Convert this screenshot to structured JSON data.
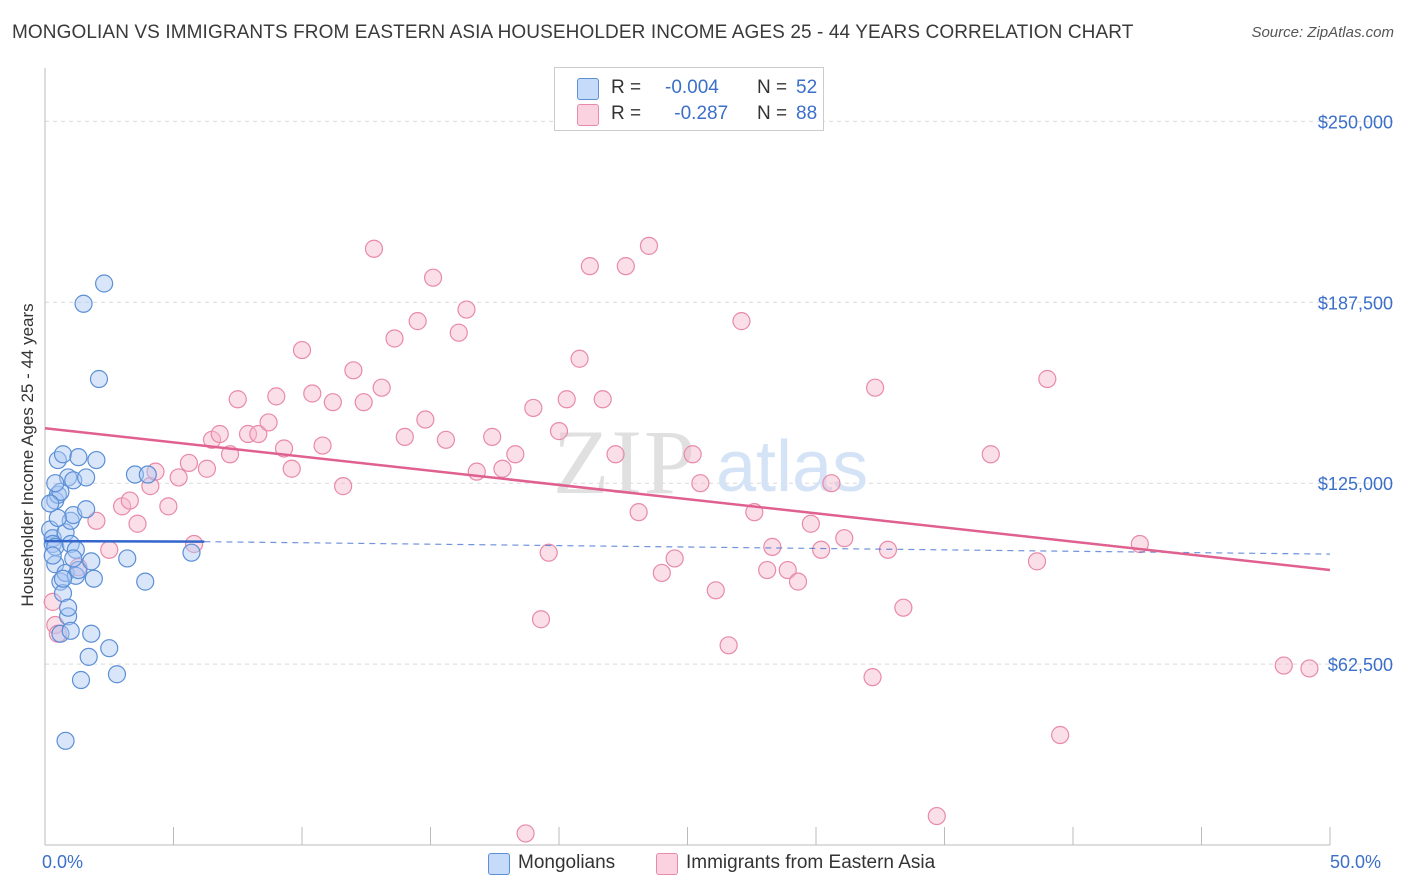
{
  "header": {
    "title": "MONGOLIAN VS IMMIGRANTS FROM EASTERN ASIA HOUSEHOLDER INCOME AGES 25 - 44 YEARS CORRELATION CHART",
    "source": "Source: ZipAtlas.com"
  },
  "legend": {
    "rows": [
      {
        "r_label": "R = ",
        "r_value": "-0.004",
        "n_label": "N = ",
        "n_value": "52",
        "color": "#aac8f5"
      },
      {
        "r_label": "R = ",
        "r_value": " -0.287",
        "n_label": "N = ",
        "n_value": "88",
        "color": "#f7b8cc"
      }
    ]
  },
  "bottom_legend": {
    "series1": "Mongolians",
    "series2": "Immigrants from Eastern Asia"
  },
  "watermark": {
    "zip": "ZIP",
    "atlas": "atlas"
  },
  "colors": {
    "mongolian_fill": "#aac8f5",
    "mongolian_stroke": "#5b8fd6",
    "mongolian_line": "#3366cc",
    "eastasia_fill": "#f7b8cc",
    "eastasia_stroke": "#e88aa8",
    "eastasia_line": "#e0608f",
    "axis_label": "#3b6fc9"
  },
  "chart_data": {
    "type": "scatter",
    "title": "MONGOLIAN VS IMMIGRANTS FROM EASTERN ASIA HOUSEHOLDER INCOME AGES 25 - 44 YEARS CORRELATION CHART",
    "xlabel": "",
    "ylabel": "Householder Income Ages 25 - 44 years",
    "xlim": [
      0,
      50
    ],
    "ylim": [
      0,
      265000
    ],
    "x_tick_labels": [
      "0.0%",
      "50.0%"
    ],
    "y_ticks": [
      62500,
      125000,
      187500,
      250000
    ],
    "y_tick_labels": [
      "$62,500",
      "$125,000",
      "$187,500",
      "$250,000"
    ],
    "grid": "horizontal dashed",
    "legend_position": "top-center",
    "series": [
      {
        "name": "Mongolians",
        "r": -0.004,
        "n": 52,
        "trend": {
          "x0": 0,
          "y0": 105000,
          "x1": 6.2,
          "y1": 104800,
          "dashed_to_x": 50,
          "dashed_y1": 100500
        },
        "points": [
          [
            0.2,
            109000
          ],
          [
            0.3,
            106000
          ],
          [
            0.3,
            104000
          ],
          [
            0.4,
            97000
          ],
          [
            0.4,
            119000
          ],
          [
            0.5,
            121000
          ],
          [
            0.5,
            133000
          ],
          [
            0.4,
            103000
          ],
          [
            0.6,
            122000
          ],
          [
            0.7,
            135000
          ],
          [
            0.8,
            108000
          ],
          [
            0.6,
            91000
          ],
          [
            0.7,
            87000
          ],
          [
            0.8,
            94000
          ],
          [
            0.9,
            127000
          ],
          [
            1.0,
            112000
          ],
          [
            1.0,
            104000
          ],
          [
            1.1,
            126000
          ],
          [
            1.1,
            114000
          ],
          [
            1.2,
            102000
          ],
          [
            1.2,
            93000
          ],
          [
            1.3,
            95000
          ],
          [
            1.3,
            134000
          ],
          [
            1.4,
            57000
          ],
          [
            1.5,
            187000
          ],
          [
            1.6,
            116000
          ],
          [
            1.6,
            127000
          ],
          [
            1.7,
            65000
          ],
          [
            1.8,
            98000
          ],
          [
            1.9,
            92000
          ],
          [
            2.0,
            133000
          ],
          [
            2.1,
            161000
          ],
          [
            0.9,
            79000
          ],
          [
            0.9,
            82000
          ],
          [
            0.6,
            73000
          ],
          [
            1.0,
            74000
          ],
          [
            1.8,
            73000
          ],
          [
            2.5,
            68000
          ],
          [
            2.8,
            59000
          ],
          [
            3.2,
            99000
          ],
          [
            3.5,
            128000
          ],
          [
            3.9,
            91000
          ],
          [
            4.0,
            128000
          ],
          [
            2.3,
            194000
          ],
          [
            5.7,
            101000
          ],
          [
            0.8,
            36000
          ],
          [
            0.3,
            100000
          ],
          [
            0.5,
            113000
          ],
          [
            0.2,
            118000
          ],
          [
            0.7,
            92000
          ],
          [
            1.1,
            99000
          ],
          [
            0.4,
            125000
          ]
        ]
      },
      {
        "name": "Immigrants from Eastern Asia",
        "r": -0.287,
        "n": 88,
        "trend": {
          "x0": 0,
          "y0": 144000,
          "x1": 50,
          "y1": 95000
        },
        "points": [
          [
            0.3,
            84000
          ],
          [
            0.4,
            76000
          ],
          [
            0.5,
            73000
          ],
          [
            1.3,
            96000
          ],
          [
            2.0,
            112000
          ],
          [
            2.5,
            102000
          ],
          [
            3.0,
            117000
          ],
          [
            3.3,
            119000
          ],
          [
            3.6,
            111000
          ],
          [
            4.1,
            124000
          ],
          [
            4.3,
            129000
          ],
          [
            4.8,
            117000
          ],
          [
            5.2,
            127000
          ],
          [
            5.6,
            132000
          ],
          [
            5.8,
            104000
          ],
          [
            6.3,
            130000
          ],
          [
            6.5,
            140000
          ],
          [
            6.8,
            142000
          ],
          [
            7.2,
            135000
          ],
          [
            7.5,
            154000
          ],
          [
            7.9,
            142000
          ],
          [
            8.3,
            142000
          ],
          [
            8.7,
            146000
          ],
          [
            9.0,
            155000
          ],
          [
            9.3,
            137000
          ],
          [
            9.6,
            130000
          ],
          [
            10.0,
            171000
          ],
          [
            10.4,
            156000
          ],
          [
            10.8,
            138000
          ],
          [
            11.2,
            153000
          ],
          [
            11.6,
            124000
          ],
          [
            12.0,
            164000
          ],
          [
            12.4,
            153000
          ],
          [
            12.8,
            206000
          ],
          [
            13.1,
            158000
          ],
          [
            13.6,
            175000
          ],
          [
            14.0,
            141000
          ],
          [
            14.5,
            181000
          ],
          [
            14.8,
            147000
          ],
          [
            15.1,
            196000
          ],
          [
            15.6,
            140000
          ],
          [
            16.1,
            177000
          ],
          [
            16.4,
            185000
          ],
          [
            16.8,
            129000
          ],
          [
            17.4,
            141000
          ],
          [
            17.8,
            130000
          ],
          [
            18.3,
            135000
          ],
          [
            18.7,
            4000
          ],
          [
            19.0,
            151000
          ],
          [
            19.3,
            78000
          ],
          [
            19.6,
            101000
          ],
          [
            20.0,
            143000
          ],
          [
            20.3,
            154000
          ],
          [
            20.8,
            168000
          ],
          [
            21.2,
            200000
          ],
          [
            21.7,
            154000
          ],
          [
            22.2,
            135000
          ],
          [
            22.6,
            200000
          ],
          [
            23.1,
            115000
          ],
          [
            23.5,
            207000
          ],
          [
            24.0,
            94000
          ],
          [
            24.5,
            99000
          ],
          [
            25.2,
            135000
          ],
          [
            25.5,
            125000
          ],
          [
            26.1,
            88000
          ],
          [
            26.6,
            69000
          ],
          [
            27.1,
            181000
          ],
          [
            27.6,
            115000
          ],
          [
            28.1,
            95000
          ],
          [
            28.3,
            103000
          ],
          [
            28.9,
            95000
          ],
          [
            29.3,
            91000
          ],
          [
            29.8,
            111000
          ],
          [
            30.2,
            102000
          ],
          [
            30.6,
            125000
          ],
          [
            31.1,
            106000
          ],
          [
            32.2,
            58000
          ],
          [
            32.3,
            158000
          ],
          [
            32.8,
            102000
          ],
          [
            33.4,
            82000
          ],
          [
            34.7,
            10000
          ],
          [
            36.8,
            135000
          ],
          [
            38.6,
            98000
          ],
          [
            39.0,
            161000
          ],
          [
            39.5,
            38000
          ],
          [
            42.6,
            104000
          ],
          [
            48.2,
            62000
          ],
          [
            49.2,
            61000
          ]
        ]
      }
    ]
  }
}
